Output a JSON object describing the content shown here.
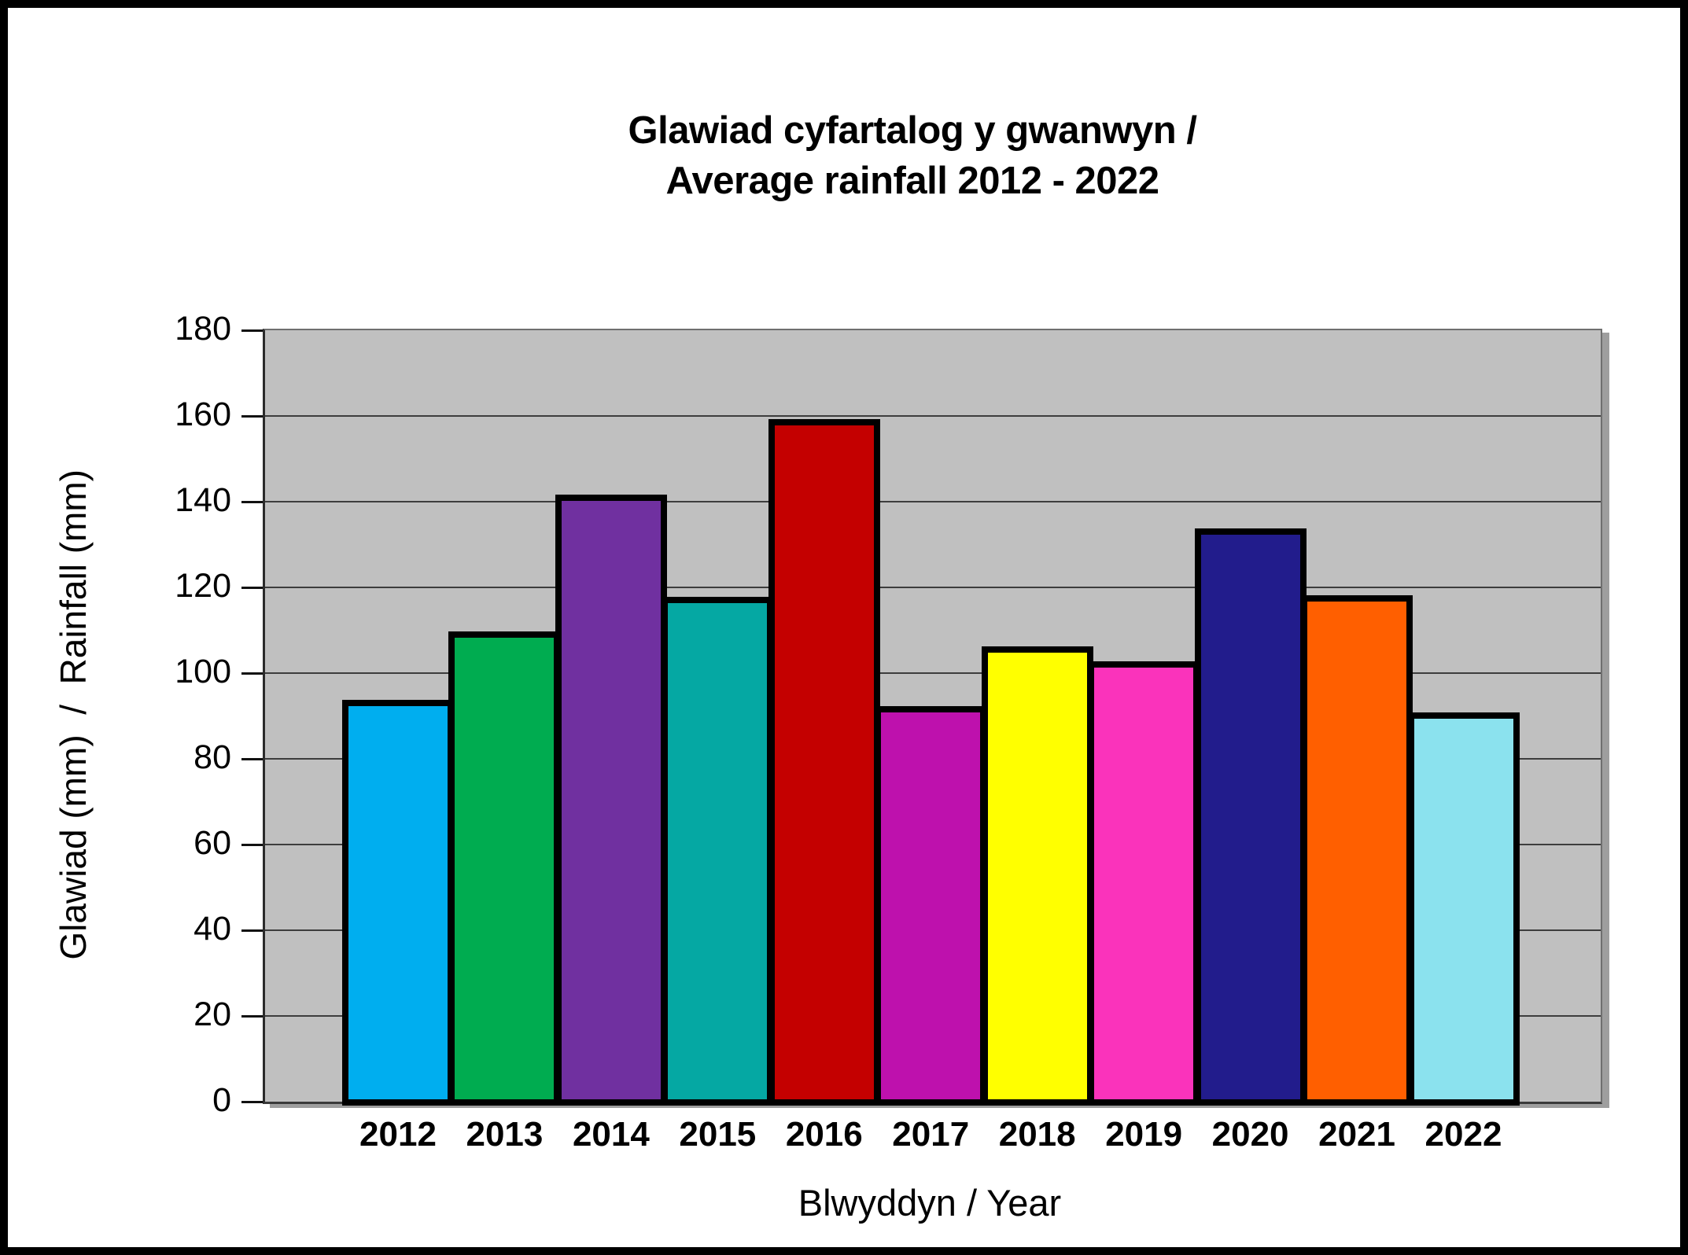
{
  "frame": {
    "border_color": "#000000",
    "background_color": "#FFFFFF"
  },
  "chart_data": {
    "type": "bar",
    "title_line1": "Glawiad cyfartalog y gwanwyn /",
    "title_line2": "Average rainfall 2012 - 2022",
    "xlabel": "Blwyddyn / Year",
    "ylabel": "Glawiad (mm)  /  Rainfall (mm)",
    "categories": [
      "2012",
      "2013",
      "2014",
      "2015",
      "2016",
      "2017",
      "2018",
      "2019",
      "2020",
      "2021",
      "2022"
    ],
    "values": [
      93,
      109,
      141,
      117,
      158.5,
      91.5,
      105.5,
      102,
      133,
      117.5,
      90
    ],
    "bar_colors": [
      "#00AEEF",
      "#00AC50",
      "#7030A0",
      "#05A8A3",
      "#C40000",
      "#BE11AD",
      "#FFFF00",
      "#FA33BB",
      "#221C8C",
      "#FF5F00",
      "#8BE2EE"
    ],
    "bar_border_color": "#000000",
    "ylim": [
      0,
      180
    ],
    "ytick_step": 20,
    "grid": true,
    "gridline_color": "#3D3D3D",
    "plot_bg": "#C0C0C0",
    "legend": "none"
  }
}
